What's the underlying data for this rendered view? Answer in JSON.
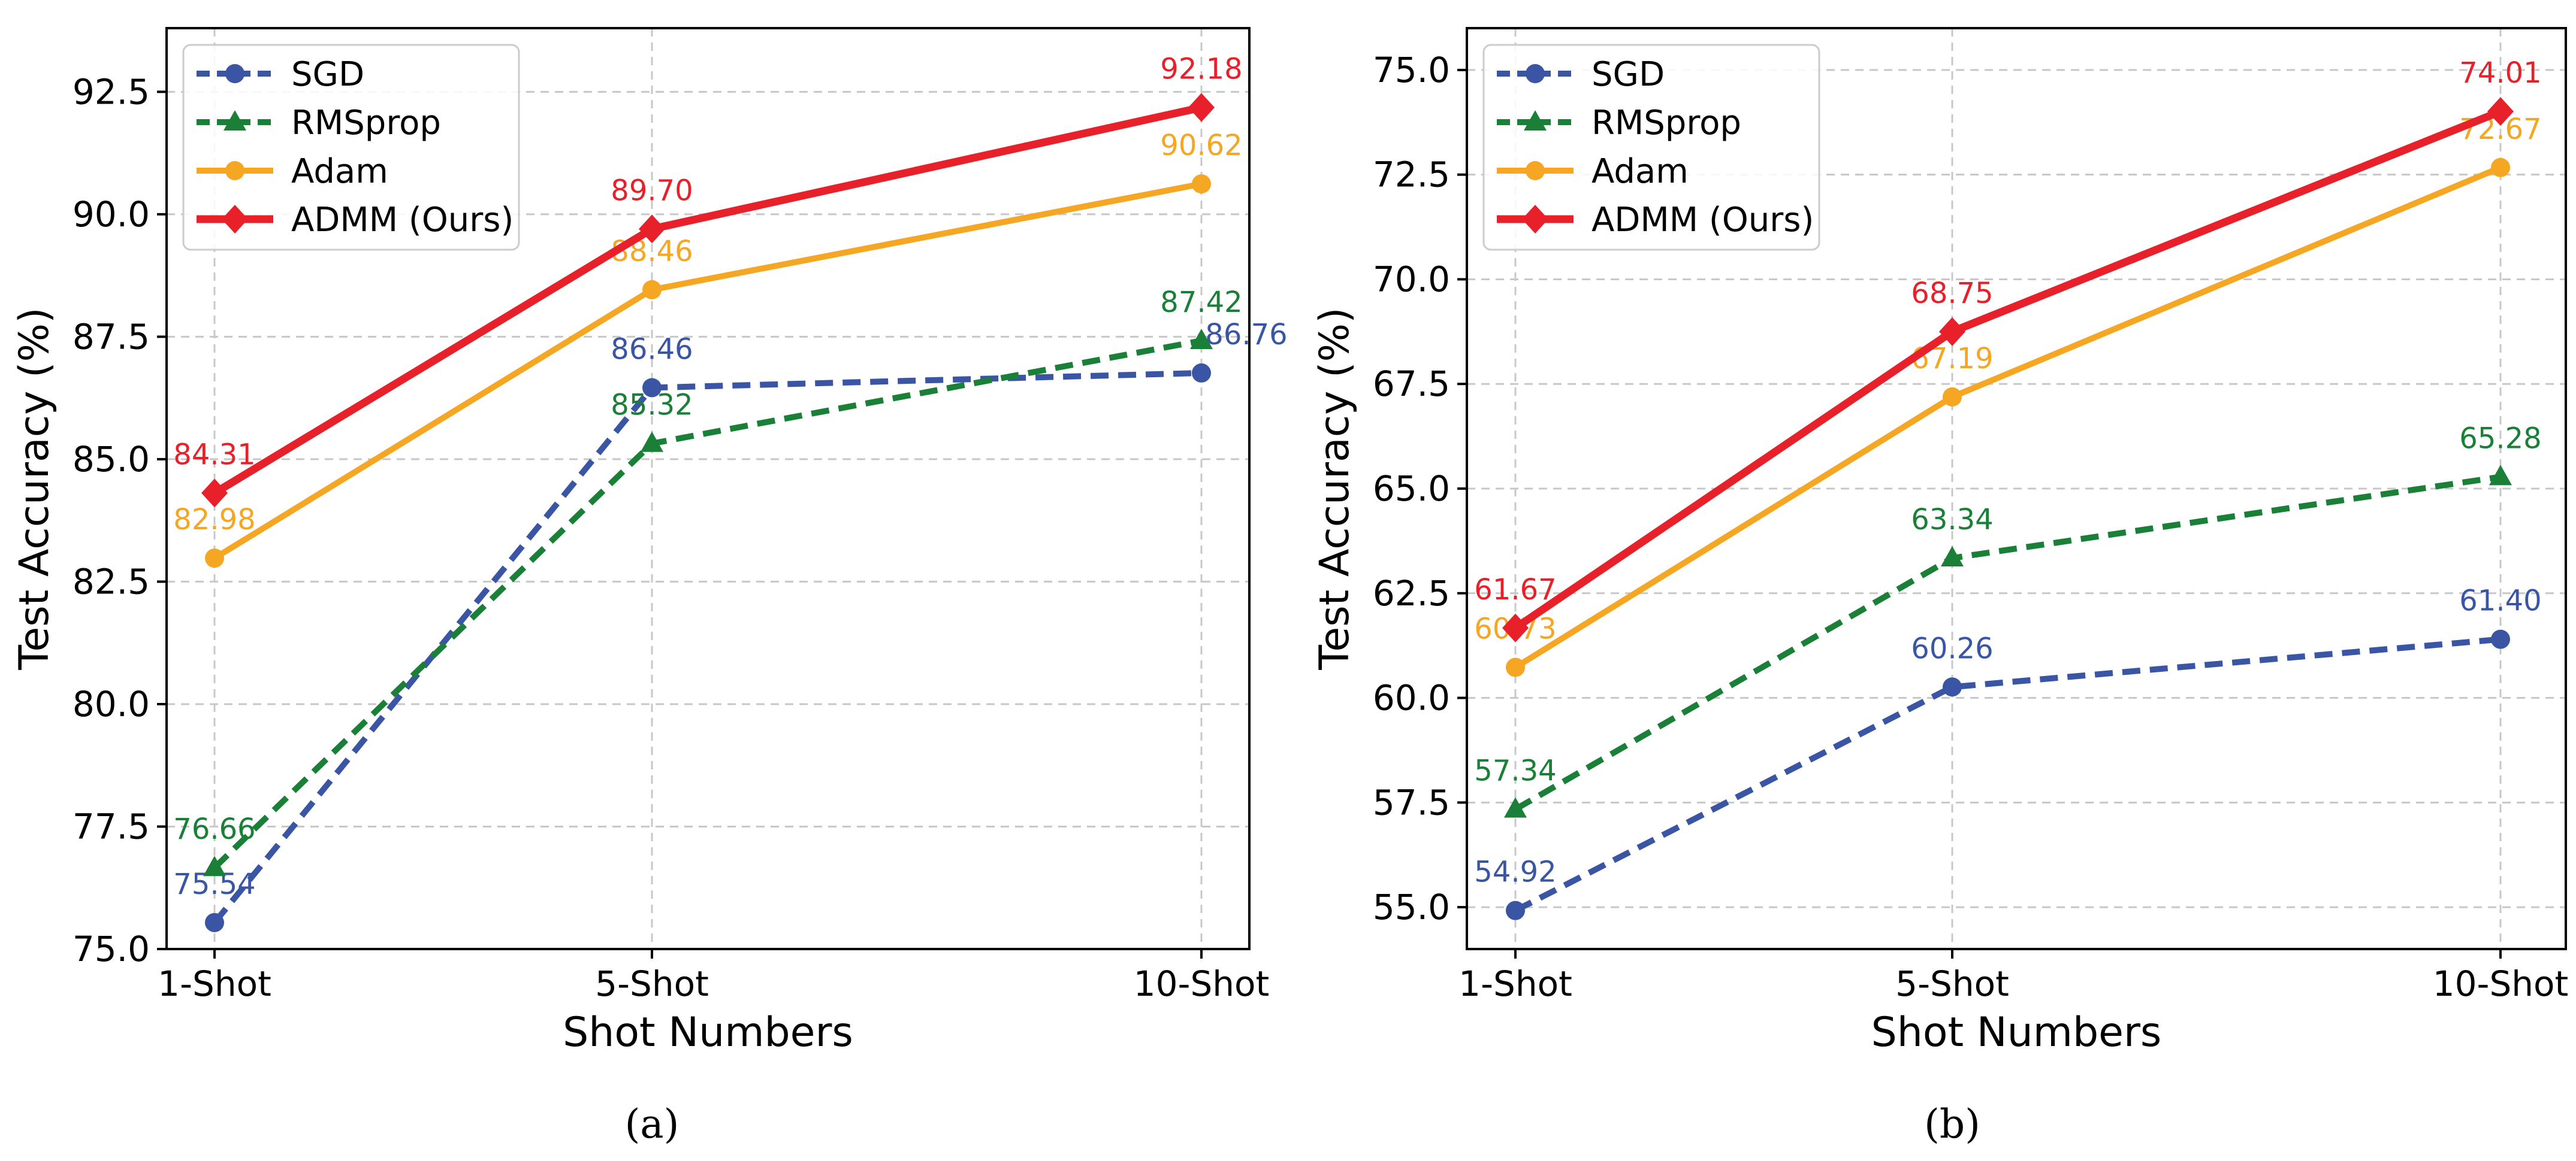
{
  "chart_data": [
    {
      "type": "line",
      "panel_label": "(a)",
      "title": "",
      "xlabel": "Shot Numbers",
      "ylabel": "Test Accuracy (%)",
      "categories": [
        "1-Shot",
        "5-Shot",
        "10-Shot"
      ],
      "ylim": [
        75.0,
        93.8
      ],
      "yticks": [
        "75.0",
        "77.5",
        "80.0",
        "82.5",
        "85.0",
        "87.5",
        "90.0",
        "92.5"
      ],
      "grid": true,
      "legend_position": "top-left",
      "series": [
        {
          "name": "SGD",
          "values": [
            75.54,
            86.46,
            86.76
          ],
          "labels": [
            "75.54",
            "86.46",
            "86.76"
          ],
          "color": "#3a55a4",
          "style": "dashed",
          "marker": "circle"
        },
        {
          "name": "RMSprop",
          "values": [
            76.66,
            85.32,
            87.42
          ],
          "labels": [
            "76.66",
            "85.32",
            "87.42"
          ],
          "color": "#1a7f37",
          "style": "dashed",
          "marker": "triangle"
        },
        {
          "name": "Adam",
          "values": [
            82.98,
            88.46,
            90.62
          ],
          "labels": [
            "82.98",
            "88.46",
            "90.62"
          ],
          "color": "#f5a623",
          "style": "solid",
          "marker": "circle"
        },
        {
          "name": "ADMM (Ours)",
          "values": [
            84.31,
            89.7,
            92.18
          ],
          "labels": [
            "84.31",
            "89.70",
            "92.18"
          ],
          "color": "#e8202a",
          "style": "solid",
          "marker": "diamond"
        }
      ]
    },
    {
      "type": "line",
      "panel_label": "(b)",
      "title": "",
      "xlabel": "Shot Numbers",
      "ylabel": "Test Accuracy (%)",
      "categories": [
        "1-Shot",
        "5-Shot",
        "10-Shot"
      ],
      "ylim": [
        54.0,
        76.0
      ],
      "yticks": [
        "55.0",
        "57.5",
        "60.0",
        "62.5",
        "65.0",
        "67.5",
        "70.0",
        "72.5",
        "75.0"
      ],
      "grid": true,
      "legend_position": "top-left",
      "series": [
        {
          "name": "SGD",
          "values": [
            54.92,
            60.26,
            61.4
          ],
          "labels": [
            "54.92",
            "60.26",
            "61.40"
          ],
          "color": "#3a55a4",
          "style": "dashed",
          "marker": "circle"
        },
        {
          "name": "RMSprop",
          "values": [
            57.34,
            63.34,
            65.28
          ],
          "labels": [
            "57.34",
            "63.34",
            "65.28"
          ],
          "color": "#1a7f37",
          "style": "dashed",
          "marker": "triangle"
        },
        {
          "name": "Adam",
          "values": [
            60.73,
            67.19,
            72.67
          ],
          "labels": [
            "60.73",
            "67.19",
            "72.67"
          ],
          "color": "#f5a623",
          "style": "solid",
          "marker": "circle"
        },
        {
          "name": "ADMM (Ours)",
          "values": [
            61.67,
            68.75,
            74.01
          ],
          "labels": [
            "61.67",
            "68.75",
            "74.01"
          ],
          "color": "#e8202a",
          "style": "solid",
          "marker": "diamond"
        }
      ]
    }
  ]
}
